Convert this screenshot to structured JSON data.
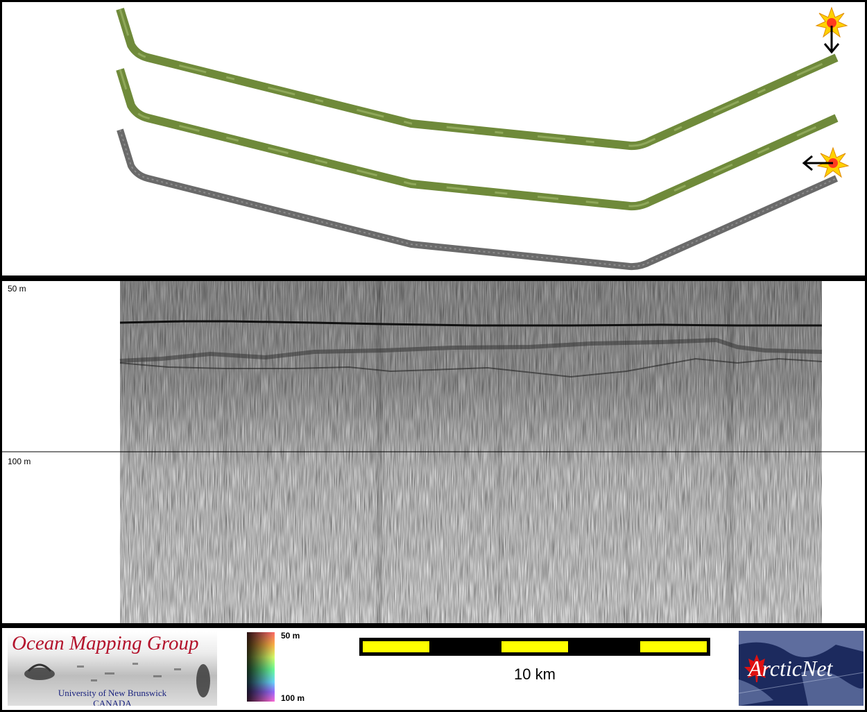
{
  "profile": {
    "depth_top_label": "50 m",
    "depth_mid_label": "100 m"
  },
  "logos": {
    "ogm_title": "Ocean Mapping Group",
    "ogm_university": "University of New Brunswick",
    "ogm_country": "CANADA",
    "arcticnet": "ArcticNet"
  },
  "colorbar": {
    "top_label": "50 m",
    "bottom_label": "100 m"
  },
  "scale": {
    "label": "10 km"
  },
  "colors": {
    "swath_green": "#6f8a3a",
    "swath_grey": "#6a6a6a",
    "scalebar_yellow": "#ffff00",
    "ogm_red": "#b3122b"
  },
  "icons": [
    "sun-icon",
    "arrow-down-icon",
    "arrow-left-icon",
    "maple-leaf-icon"
  ]
}
